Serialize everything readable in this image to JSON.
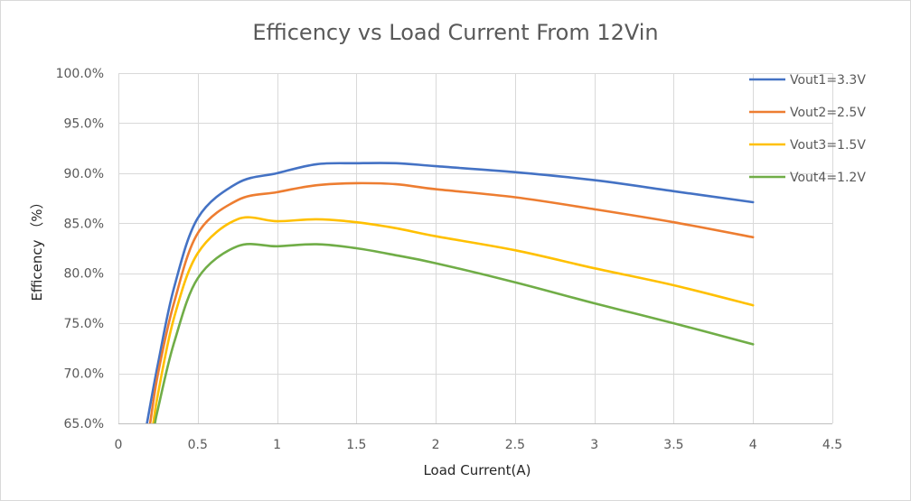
{
  "chart_data": {
    "type": "line",
    "title": "Efficency vs Load Current From 12Vin",
    "xlabel": "Load Current(A)",
    "ylabel": "Efficency （%）",
    "xlim": [
      0,
      4.5
    ],
    "ylim": [
      65,
      100
    ],
    "x_ticks": [
      0,
      0.5,
      1,
      1.5,
      2,
      2.5,
      3,
      3.5,
      4,
      4.5
    ],
    "x_tick_labels": [
      "0",
      "0.5",
      "1",
      "1.5",
      "2",
      "2.5",
      "3",
      "3.5",
      "4",
      "4.5"
    ],
    "y_ticks": [
      65,
      70,
      75,
      80,
      85,
      90,
      95,
      100
    ],
    "y_tick_labels": [
      "65.0%",
      "70.0%",
      "75.0%",
      "80.0%",
      "85.0%",
      "90.0%",
      "95.0%",
      "100.0%"
    ],
    "grid": true,
    "legend_position": "top-right",
    "series": [
      {
        "name": "Vout1=3.3V",
        "color": "#4472c4",
        "x": [
          0.18,
          0.25,
          0.35,
          0.5,
          0.75,
          1.0,
          1.25,
          1.5,
          1.75,
          2.0,
          2.5,
          3.0,
          3.5,
          4.0
        ],
        "y": [
          65.0,
          71.0,
          78.5,
          85.5,
          89.0,
          90.0,
          90.9,
          91.0,
          91.0,
          90.7,
          90.1,
          89.3,
          88.2,
          87.1
        ]
      },
      {
        "name": "Vout2=2.5V",
        "color": "#ed7d31",
        "x": [
          0.2,
          0.25,
          0.35,
          0.5,
          0.75,
          1.0,
          1.25,
          1.5,
          1.75,
          2.0,
          2.5,
          3.0,
          3.5,
          4.0
        ],
        "y": [
          65.0,
          70.0,
          77.0,
          84.0,
          87.3,
          88.1,
          88.8,
          89.0,
          88.9,
          88.4,
          87.6,
          86.4,
          85.1,
          83.6
        ]
      },
      {
        "name": "Vout3=1.5V",
        "color": "#ffc000",
        "x": [
          0.22,
          0.25,
          0.35,
          0.5,
          0.75,
          1.0,
          1.25,
          1.5,
          1.75,
          2.0,
          2.5,
          3.0,
          3.5,
          4.0
        ],
        "y": [
          65.0,
          68.0,
          75.5,
          82.0,
          85.4,
          85.2,
          85.4,
          85.1,
          84.5,
          83.7,
          82.3,
          80.5,
          78.8,
          76.8
        ]
      },
      {
        "name": "Vout4=1.2V",
        "color": "#70ad47",
        "x": [
          0.23,
          0.25,
          0.35,
          0.5,
          0.75,
          1.0,
          1.25,
          1.5,
          1.75,
          2.0,
          2.5,
          3.0,
          3.5,
          4.0
        ],
        "y": [
          65.0,
          66.5,
          73.0,
          79.5,
          82.7,
          82.7,
          82.9,
          82.5,
          81.8,
          81.0,
          79.1,
          77.0,
          75.0,
          72.9
        ]
      }
    ]
  }
}
